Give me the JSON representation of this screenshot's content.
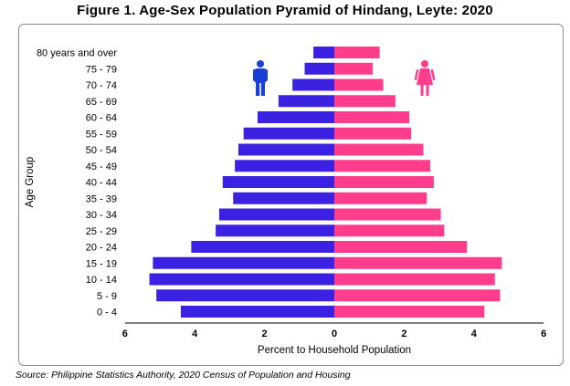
{
  "title": "Figure 1. Age-Sex Population Pyramid of Hindang, Leyte: 2020",
  "source": "Source: Philippine Statistics Authority, 2020 Census of Population and Housing",
  "chart_data": {
    "type": "bar",
    "orientation": "horizontal-pyramid",
    "categories": [
      "80 years and over",
      "75 - 79",
      "70 - 74",
      "65 - 69",
      "60 - 64",
      "55 - 59",
      "50 - 54",
      "45 - 49",
      "40 - 44",
      "35 - 39",
      "30 - 34",
      "25 - 29",
      "20 - 24",
      "15 - 19",
      "10 - 14",
      "5 - 9",
      "0 - 4"
    ],
    "series": [
      {
        "values": [
          0.6,
          0.85,
          1.2,
          1.6,
          2.2,
          2.6,
          2.75,
          2.85,
          3.2,
          2.9,
          3.3,
          3.4,
          4.1,
          5.2,
          5.3,
          5.1,
          4.4
        ],
        "color": "#3b22e3"
      },
      {
        "values": [
          1.3,
          1.1,
          1.4,
          1.75,
          2.15,
          2.2,
          2.55,
          2.75,
          2.85,
          2.65,
          3.05,
          3.15,
          3.8,
          4.8,
          4.6,
          4.75,
          4.3
        ],
        "color": "#ff3d8c"
      }
    ],
    "xlabel": "Percent to Household Population",
    "ylabel": "Age Group",
    "xlim": [
      -6,
      6
    ],
    "x_tick_labels": [
      "6",
      "4",
      "2",
      "0",
      "2",
      "4",
      "6"
    ],
    "grid": false,
    "legend": "icons",
    "icons": [
      "male-icon",
      "female-icon"
    ]
  }
}
